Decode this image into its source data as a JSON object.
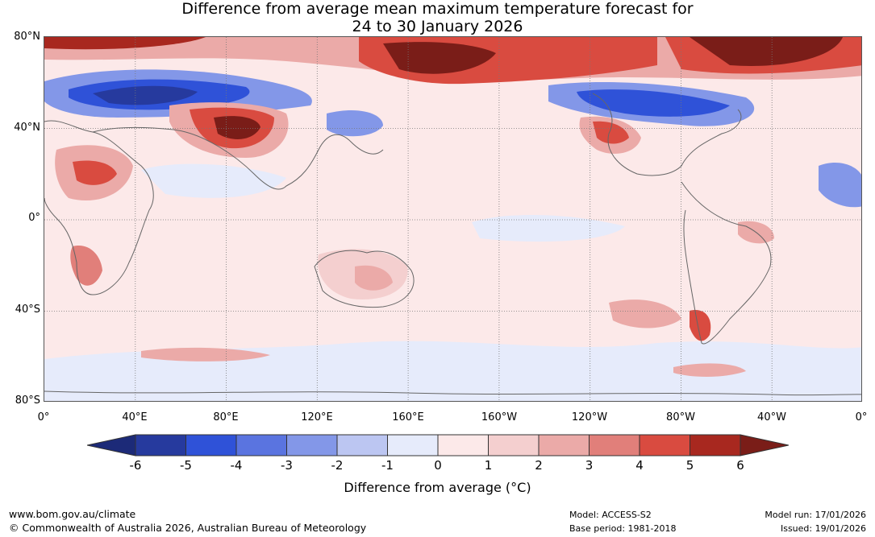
{
  "title": {
    "line1": "Difference from average mean maximum temperature forecast for",
    "line2": "24 to 30 January 2026"
  },
  "map": {
    "lat_labels": [
      "80°N",
      "40°N",
      "0°",
      "40°S",
      "80°S"
    ],
    "lon_labels": [
      "0°",
      "40°E",
      "80°E",
      "120°E",
      "160°E",
      "160°W",
      "120°W",
      "80°W",
      "40°W",
      "0°"
    ]
  },
  "colorbar": {
    "ticks": [
      "-6",
      "-5",
      "-4",
      "-3",
      "-2",
      "-1",
      "0",
      "1",
      "2",
      "3",
      "4",
      "5",
      "6"
    ],
    "colors": [
      "#263a9e",
      "#2f52d8",
      "#5a74e0",
      "#8397e8",
      "#bcc6f2",
      "#e6ebfb",
      "#fce9e9",
      "#f4cfcf",
      "#ebaaa8",
      "#e17f7a",
      "#d94b40",
      "#a8281f"
    ],
    "low_extend_color": "#1c2a78",
    "high_extend_color": "#7a1d18",
    "label": "Difference from average (°C)"
  },
  "footer": {
    "website": "www.bom.gov.au/climate",
    "copyright": "© Commonwealth of Australia 2026, Australian Bureau of Meteorology",
    "model": "Model: ACCESS-S2",
    "base_period": "Base period: 1981-2018",
    "model_run": "Model run: 17/01/2026",
    "issued": "Issued: 19/01/2026"
  }
}
